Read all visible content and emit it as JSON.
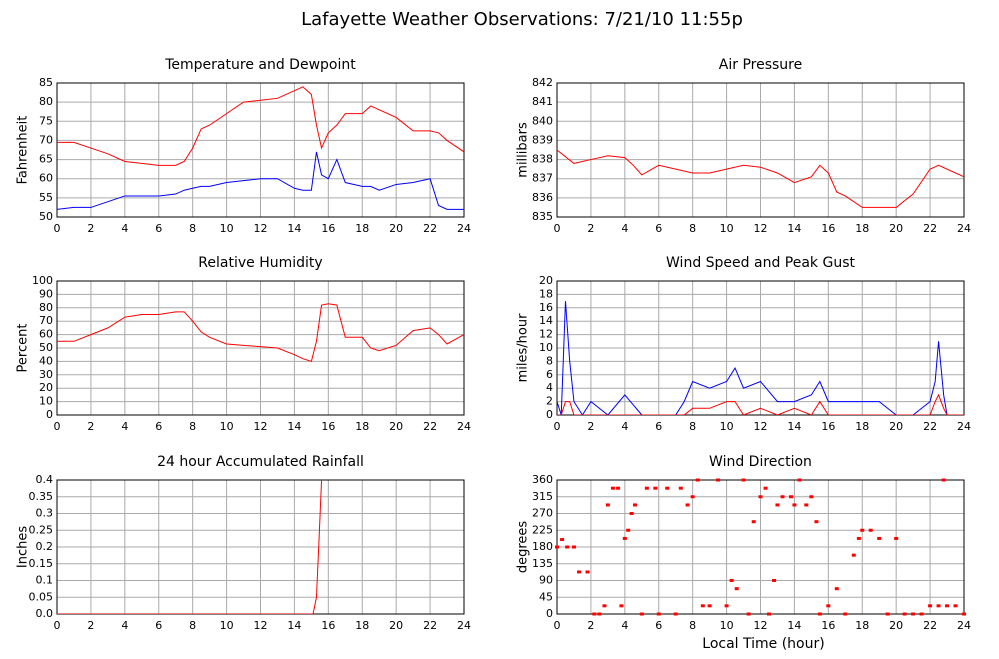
{
  "title": "Lafayette Weather Observations: 7/21/10 11:55p",
  "chart_data": [
    {
      "type": "line",
      "title": "Temperature and Dewpoint",
      "ylabel": "Fahrenheit",
      "grid": true,
      "x": [
        0,
        1,
        2,
        3,
        4,
        5,
        6,
        7,
        7.5,
        8,
        8.5,
        9,
        10,
        11,
        12,
        13,
        14,
        14.5,
        15,
        15.3,
        15.6,
        16,
        16.5,
        17,
        18,
        18.5,
        19,
        20,
        21,
        22,
        22.5,
        23,
        24
      ],
      "series": [
        {
          "name": "Temperature",
          "color": "#ff0000",
          "values": [
            69.5,
            69.5,
            68,
            66.5,
            64.5,
            64,
            63.5,
            63.5,
            64.5,
            68,
            73,
            74,
            77,
            80,
            80.5,
            81,
            83,
            84,
            82,
            74,
            68,
            72,
            74,
            77,
            77,
            79,
            78,
            76,
            72.5,
            72.5,
            72,
            70,
            67
          ]
        },
        {
          "name": "Dewpoint",
          "color": "#0000ff",
          "values": [
            52,
            52.5,
            52.5,
            54,
            55.5,
            55.5,
            55.5,
            56,
            57,
            57.5,
            58,
            58,
            59,
            59.5,
            60,
            60,
            57.5,
            57,
            57,
            67,
            61,
            60,
            65,
            59,
            58,
            58,
            57,
            58.5,
            59,
            60,
            53,
            52,
            52
          ]
        }
      ],
      "xlim": [
        0,
        24
      ],
      "xticks": [
        0,
        2,
        4,
        6,
        8,
        10,
        12,
        14,
        16,
        18,
        20,
        22,
        24
      ],
      "ylim": [
        50,
        85
      ],
      "yticks": [
        50,
        55,
        60,
        65,
        70,
        75,
        80,
        85
      ]
    },
    {
      "type": "line",
      "title": "Air Pressure",
      "ylabel": "millibars",
      "grid": true,
      "x": [
        0,
        1,
        2,
        3,
        4,
        4.5,
        5,
        6,
        7,
        8,
        9,
        10,
        11,
        12,
        13,
        14,
        15,
        15.5,
        16,
        16.5,
        17,
        18,
        19,
        20,
        21,
        22,
        22.5,
        23,
        24
      ],
      "series": [
        {
          "name": "Pressure",
          "color": "#ff0000",
          "values": [
            838.5,
            837.8,
            838,
            838.2,
            838.1,
            837.7,
            837.2,
            837.7,
            837.5,
            837.3,
            837.3,
            837.5,
            837.7,
            837.6,
            837.3,
            836.8,
            837.1,
            837.7,
            837.3,
            836.3,
            836.1,
            835.5,
            835.5,
            835.5,
            836.2,
            837.5,
            837.7,
            837.5,
            837.1
          ]
        }
      ],
      "xlim": [
        0,
        24
      ],
      "xticks": [
        0,
        2,
        4,
        6,
        8,
        10,
        12,
        14,
        16,
        18,
        20,
        22,
        24
      ],
      "ylim": [
        835,
        842
      ],
      "yticks": [
        835,
        836,
        837,
        838,
        839,
        840,
        841,
        842
      ]
    },
    {
      "type": "line",
      "title": "Relative Humidity",
      "ylabel": "Percent",
      "grid": true,
      "x": [
        0,
        1,
        2,
        3,
        4,
        5,
        6,
        7,
        7.5,
        8,
        8.5,
        9,
        10,
        11,
        12,
        13,
        14,
        14.5,
        15,
        15.3,
        15.6,
        16,
        16.5,
        17,
        18,
        18.5,
        19,
        20,
        21,
        22,
        22.5,
        23,
        24
      ],
      "series": [
        {
          "name": "Humidity",
          "color": "#ff0000",
          "values": [
            55,
            55,
            60,
            65,
            73,
            75,
            75,
            77,
            77,
            70,
            62,
            58,
            53,
            52,
            51,
            50,
            45,
            42,
            40,
            55,
            82,
            83,
            82,
            58,
            58,
            50,
            48,
            52,
            63,
            65,
            60,
            53,
            60
          ]
        }
      ],
      "xlim": [
        0,
        24
      ],
      "xticks": [
        0,
        2,
        4,
        6,
        8,
        10,
        12,
        14,
        16,
        18,
        20,
        22,
        24
      ],
      "ylim": [
        0,
        100
      ],
      "yticks": [
        0,
        10,
        20,
        30,
        40,
        50,
        60,
        70,
        80,
        90,
        100
      ]
    },
    {
      "type": "line",
      "title": "Wind Speed and Peak Gust",
      "ylabel": "miles/hour",
      "grid": true,
      "x": [
        0,
        0.25,
        0.5,
        0.75,
        1,
        1.5,
        2,
        3,
        4,
        5,
        6,
        7,
        7.5,
        8,
        9,
        10,
        10.5,
        11,
        12,
        13,
        14,
        15,
        15.5,
        16,
        17,
        18,
        19,
        20,
        21,
        22,
        22.3,
        22.5,
        22.8,
        23,
        24
      ],
      "series": [
        {
          "name": "Wind Speed",
          "color": "#0000ff",
          "values": [
            2,
            0,
            17,
            8,
            2,
            0,
            2,
            0,
            3,
            0,
            0,
            0,
            2,
            5,
            4,
            5,
            7,
            4,
            5,
            2,
            2,
            3,
            5,
            2,
            2,
            2,
            2,
            0,
            0,
            2,
            5,
            11,
            3,
            0,
            0
          ]
        },
        {
          "name": "Peak Gust",
          "color": "#ff0000",
          "values": [
            0,
            0,
            2,
            2,
            0,
            0,
            0,
            0,
            0,
            0,
            0,
            0,
            0,
            1,
            1,
            2,
            2,
            0,
            1,
            0,
            1,
            0,
            2,
            0,
            0,
            0,
            0,
            0,
            0,
            0,
            2,
            3,
            1,
            0,
            0
          ]
        }
      ],
      "xlim": [
        0,
        24
      ],
      "xticks": [
        0,
        2,
        4,
        6,
        8,
        10,
        12,
        14,
        16,
        18,
        20,
        22,
        24
      ],
      "ylim": [
        0,
        20
      ],
      "yticks": [
        0,
        2,
        4,
        6,
        8,
        10,
        12,
        14,
        16,
        18,
        20
      ]
    },
    {
      "type": "line",
      "title": "24 hour Accumulated Rainfall",
      "ylabel": "Inches",
      "grid": true,
      "x": [
        0,
        15.1,
        15.3,
        15.45,
        15.6
      ],
      "series": [
        {
          "name": "Rainfall",
          "color": "#ff0000",
          "values": [
            0,
            0,
            0.05,
            0.22,
            0.4
          ]
        }
      ],
      "xlim": [
        0,
        24
      ],
      "xticks": [
        0,
        2,
        4,
        6,
        8,
        10,
        12,
        14,
        16,
        18,
        20,
        22,
        24
      ],
      "ylim": [
        0,
        0.4
      ],
      "yticks": [
        {
          "value": 0,
          "label": "0.0"
        },
        0.05,
        0.1,
        0.15,
        0.2,
        0.25,
        0.3,
        0.35,
        0.4
      ]
    },
    {
      "type": "scatter",
      "title": "Wind Direction",
      "ylabel": "degrees",
      "xlabel": "Local Time (hour)",
      "grid": true,
      "x": [
        0,
        0.3,
        0.6,
        1,
        1.3,
        1.8,
        2.2,
        2.5,
        2.8,
        3,
        3.3,
        3.6,
        3.8,
        4,
        4.2,
        4.4,
        4.6,
        5,
        5.3,
        5.8,
        6,
        6.5,
        7,
        7.3,
        7.7,
        8,
        8.3,
        8.6,
        9,
        9.5,
        10,
        10.3,
        10.6,
        11,
        11.3,
        11.6,
        12,
        12.3,
        12.5,
        12.8,
        13,
        13.3,
        13.8,
        14,
        14.3,
        14.7,
        15,
        15.3,
        15.5,
        16,
        16.5,
        17,
        17.5,
        17.8,
        18,
        18.5,
        19,
        19.5,
        20,
        20.5,
        21,
        21.5,
        22,
        22.5,
        22.8,
        23,
        23.5,
        24
      ],
      "series": [
        {
          "name": "Direction",
          "color": "#ff0000",
          "values": [
            180,
            200,
            180,
            180,
            113,
            113,
            0,
            0,
            22,
            293,
            338,
            338,
            22,
            203,
            225,
            270,
            293,
            0,
            338,
            338,
            0,
            338,
            0,
            338,
            293,
            315,
            360,
            22,
            22,
            360,
            22,
            90,
            68,
            360,
            0,
            248,
            315,
            338,
            0,
            90,
            293,
            315,
            315,
            293,
            360,
            293,
            315,
            248,
            0,
            22,
            68,
            0,
            158,
            203,
            225,
            225,
            203,
            0,
            203,
            0,
            0,
            0,
            22,
            22,
            360,
            22,
            22,
            0
          ]
        }
      ],
      "xlim": [
        0,
        24
      ],
      "xticks": [
        0,
        2,
        4,
        6,
        8,
        10,
        12,
        14,
        16,
        18,
        20,
        22,
        24
      ],
      "ylim": [
        0,
        360
      ],
      "yticks": [
        0,
        45,
        90,
        135,
        180,
        225,
        270,
        315,
        360
      ]
    }
  ]
}
